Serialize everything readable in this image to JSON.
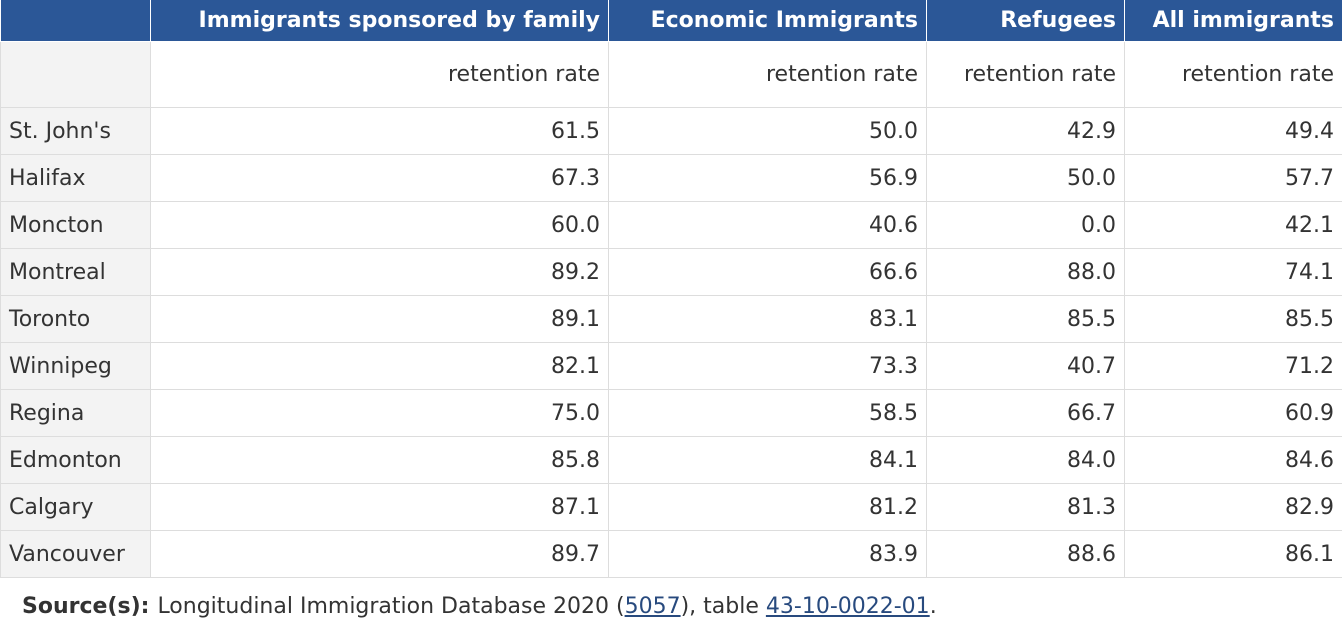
{
  "table": {
    "columns": [
      "Immigrants sponsored by family",
      "Economic Immigrants",
      "Refugees",
      "All immigrants"
    ],
    "subheaders": [
      "retention rate",
      "retention rate",
      "retention rate",
      "retention rate"
    ],
    "rows": [
      [
        "St. John's",
        "61.5",
        "50.0",
        "42.9",
        "49.4"
      ],
      [
        "Halifax",
        "67.3",
        "56.9",
        "50.0",
        "57.7"
      ],
      [
        "Moncton",
        "60.0",
        "40.6",
        "0.0",
        "42.1"
      ],
      [
        "Montreal",
        "89.2",
        "66.6",
        "88.0",
        "74.1"
      ],
      [
        "Toronto",
        "89.1",
        "83.1",
        "85.5",
        "85.5"
      ],
      [
        "Winnipeg",
        "82.1",
        "73.3",
        "40.7",
        "71.2"
      ],
      [
        "Regina",
        "75.0",
        "58.5",
        "66.7",
        "60.9"
      ],
      [
        "Edmonton",
        "85.8",
        "84.1",
        "84.0",
        "84.6"
      ],
      [
        "Calgary",
        "87.1",
        "81.2",
        "81.3",
        "82.9"
      ],
      [
        "Vancouver",
        "89.7",
        "83.9",
        "88.6",
        "86.1"
      ]
    ]
  },
  "source": {
    "label": "Source(s):",
    "text": "Longitudinal Immigration Database 2020 (",
    "link1": "5057",
    "middle": "), table",
    "link2": "43-10-0022-01",
    "end": "."
  }
}
